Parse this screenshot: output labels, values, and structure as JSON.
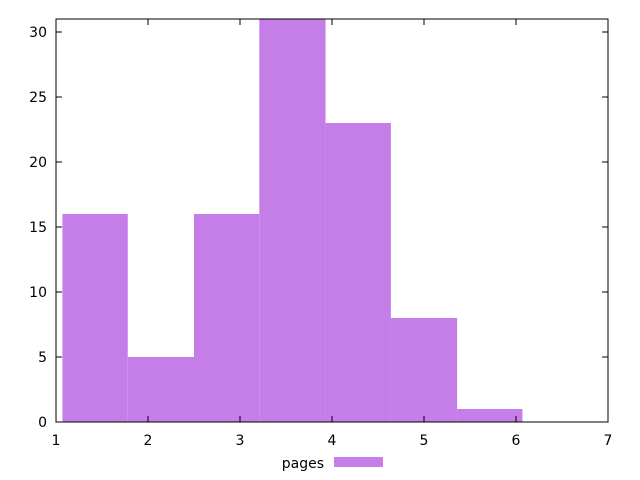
{
  "chart_data": {
    "type": "bar",
    "title": "",
    "xlabel": "",
    "ylabel": "",
    "bins": [
      {
        "x_start": 1.07,
        "x_end": 1.78,
        "value": 16
      },
      {
        "x_start": 1.78,
        "x_end": 2.5,
        "value": 5
      },
      {
        "x_start": 2.5,
        "x_end": 3.21,
        "value": 16
      },
      {
        "x_start": 3.21,
        "x_end": 3.93,
        "value": 31
      },
      {
        "x_start": 3.93,
        "x_end": 4.64,
        "value": 23
      },
      {
        "x_start": 4.64,
        "x_end": 5.36,
        "value": 8
      },
      {
        "x_start": 5.36,
        "x_end": 6.07,
        "value": 1
      }
    ],
    "xlim": [
      1,
      7
    ],
    "ylim": [
      0,
      31
    ],
    "x_ticks": [
      "1",
      "2",
      "3",
      "4",
      "5",
      "6",
      "7"
    ],
    "y_ticks": [
      "0",
      "5",
      "10",
      "15",
      "20",
      "25",
      "30"
    ],
    "series": [
      {
        "name": "pages",
        "color": "#c57de8"
      }
    ],
    "legend_position": "bottom-center",
    "grid": false
  }
}
